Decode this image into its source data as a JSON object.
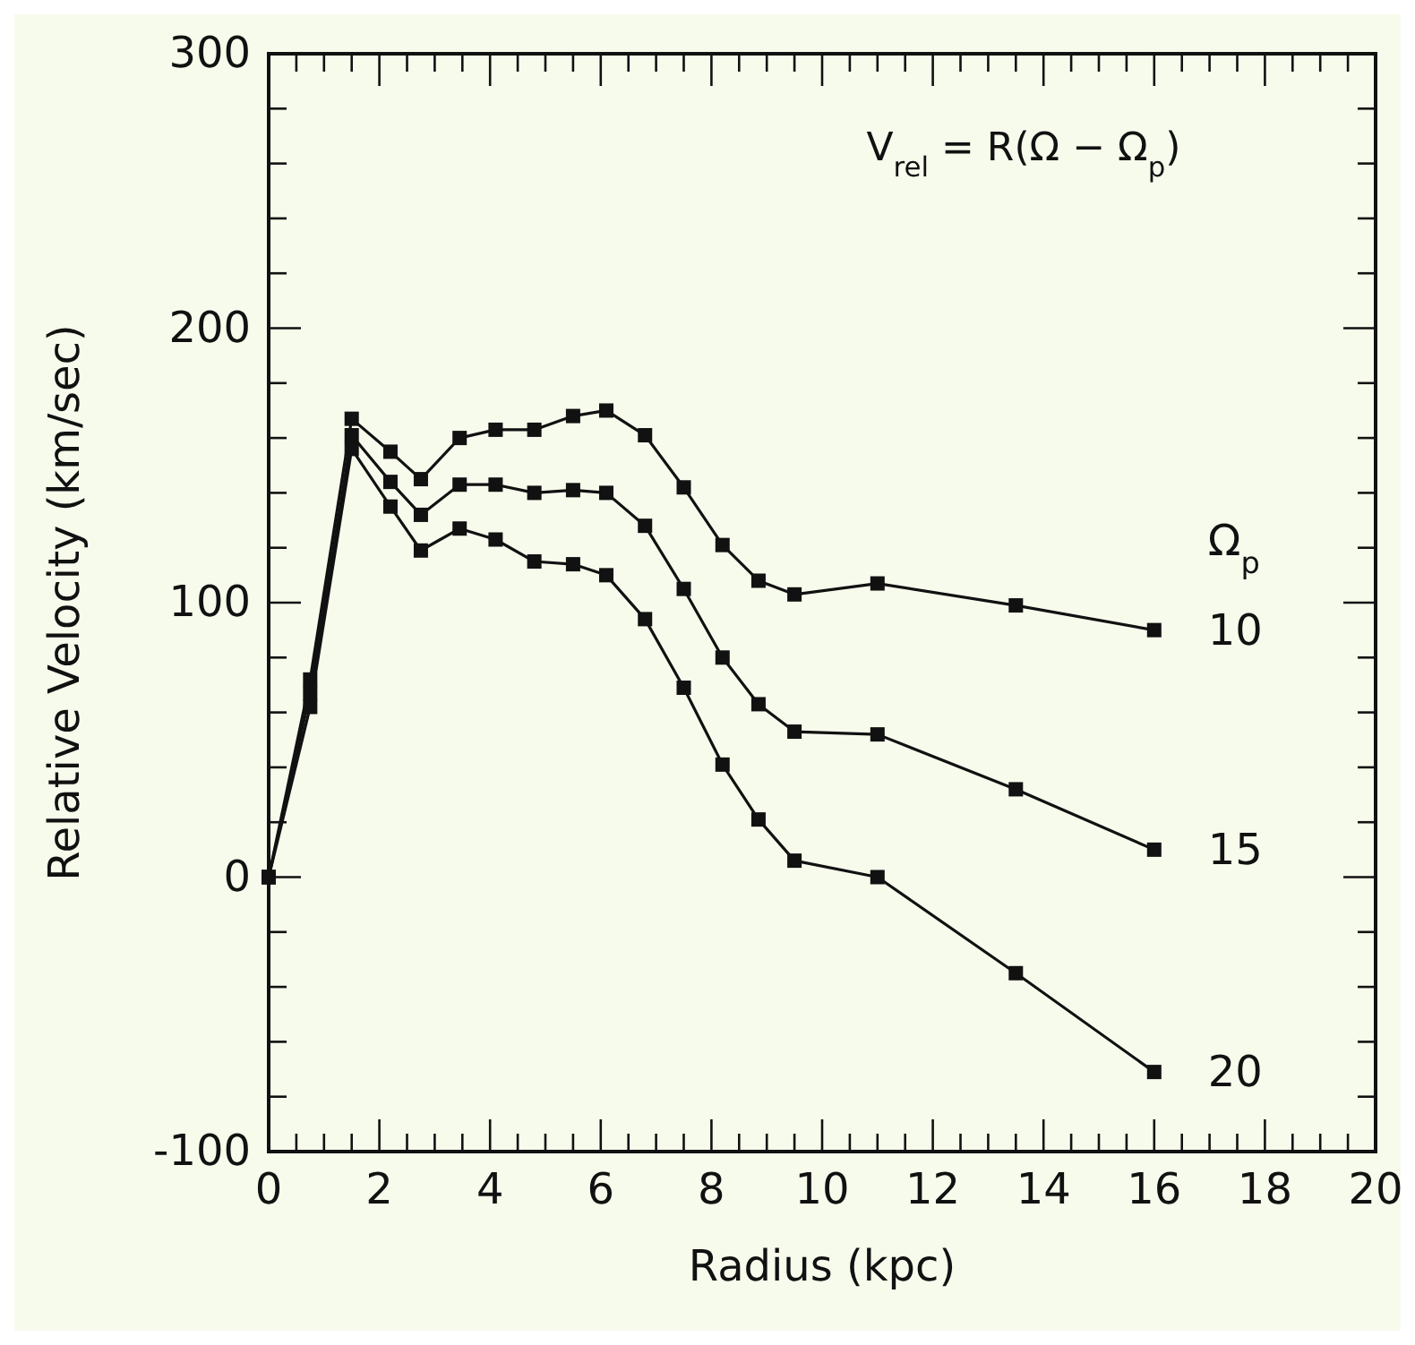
{
  "chart_data": {
    "type": "line",
    "xlabel": "Radius (kpc)",
    "ylabel": "Relative Velocity (km/sec)",
    "legend_title": "Ω$_{p}$",
    "legend": "right",
    "marker": "square",
    "line_style": "solid",
    "grid": false,
    "annotations": [
      "V$_{rel}$ = R(Ω − Ω$_{p}$)"
    ],
    "x": [
      0,
      0.75,
      1.5,
      2.2,
      2.75,
      3.45,
      4.1,
      4.8,
      5.5,
      6.1,
      6.8,
      7.5,
      8.2,
      8.85,
      9.5,
      11,
      13.5,
      16
    ],
    "series": [
      {
        "name": "10",
        "color": "#111111",
        "values": [
          0,
          72,
          167,
          155,
          145,
          160,
          163,
          163,
          168,
          170,
          161,
          142,
          121,
          108,
          103,
          107,
          99,
          90
        ]
      },
      {
        "name": "15",
        "color": "#111111",
        "values": [
          0,
          67,
          161,
          144,
          132,
          143,
          143,
          140,
          141,
          140,
          128,
          105,
          80,
          63,
          53,
          52,
          32,
          10
        ]
      },
      {
        "name": "20",
        "color": "#111111",
        "values": [
          0,
          62,
          156,
          135,
          119,
          127,
          123,
          115,
          114,
          110,
          94,
          69,
          41,
          21,
          6,
          0,
          -35,
          -71
        ]
      }
    ],
    "xlim": [
      0,
      20
    ],
    "ylim": [
      -100,
      300
    ],
    "xticks": [
      0,
      {
        "value": 0.5,
        "label": null
      },
      {
        "value": 1,
        "label": null
      },
      {
        "value": 1.5,
        "label": null
      },
      2,
      {
        "value": 2.5,
        "label": null
      },
      {
        "value": 3,
        "label": null
      },
      {
        "value": 3.5,
        "label": null
      },
      4,
      {
        "value": 4.5,
        "label": null
      },
      {
        "value": 5,
        "label": null
      },
      {
        "value": 5.5,
        "label": null
      },
      6,
      {
        "value": 6.5,
        "label": null
      },
      {
        "value": 7,
        "label": null
      },
      {
        "value": 7.5,
        "label": null
      },
      8,
      {
        "value": 8.5,
        "label": null
      },
      {
        "value": 9,
        "label": null
      },
      {
        "value": 9.5,
        "label": null
      },
      10,
      {
        "value": 10.5,
        "label": null
      },
      {
        "value": 11,
        "label": null
      },
      {
        "value": 11.5,
        "label": null
      },
      12,
      {
        "value": 12.5,
        "label": null
      },
      {
        "value": 13,
        "label": null
      },
      {
        "value": 13.5,
        "label": null
      },
      14,
      {
        "value": 14.5,
        "label": null
      },
      {
        "value": 15,
        "label": null
      },
      {
        "value": 15.5,
        "label": null
      },
      16,
      {
        "value": 16.5,
        "label": null
      },
      {
        "value": 17,
        "label": null
      },
      {
        "value": 17.5,
        "label": null
      },
      18,
      {
        "value": 18.5,
        "label": null
      },
      {
        "value": 19,
        "label": null
      },
      {
        "value": 19.5,
        "label": null
      },
      20
    ],
    "yticks": [
      -100,
      {
        "value": -80,
        "label": null
      },
      {
        "value": -60,
        "label": null
      },
      {
        "value": -40,
        "label": null
      },
      {
        "value": -20,
        "label": null
      },
      0,
      {
        "value": 20,
        "label": null
      },
      {
        "value": 40,
        "label": null
      },
      {
        "value": 60,
        "label": null
      },
      {
        "value": 80,
        "label": null
      },
      100,
      {
        "value": 120,
        "label": null
      },
      {
        "value": 140,
        "label": null
      },
      {
        "value": 160,
        "label": null
      },
      {
        "value": 180,
        "label": null
      },
      200,
      {
        "value": 220,
        "label": null
      },
      {
        "value": 240,
        "label": null
      },
      {
        "value": 260,
        "label": null
      },
      {
        "value": 280,
        "label": null
      },
      300
    ]
  }
}
